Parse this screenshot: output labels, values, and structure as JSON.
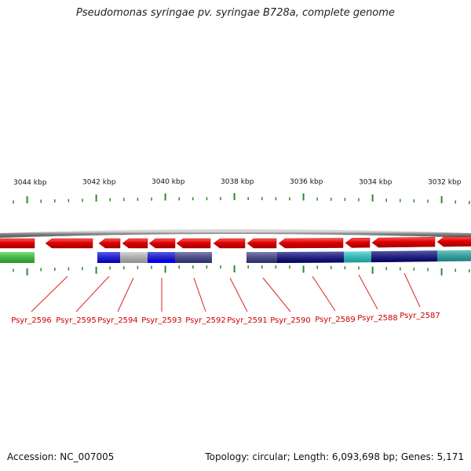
{
  "title": "Pseudomonas syringae pv. syringae B728a, complete genome",
  "footer": {
    "accession": "Accession: NC_007005",
    "summary": "Topology: circular; Length: 6,093,698 bp; Genes: 5,171"
  },
  "colors": {
    "forward_gene": "#e00000",
    "backbone": "#8c8c8c",
    "tick": "#2a8a2a",
    "label": "#cc0000",
    "leader": "#dd2222"
  },
  "scale_labels": [
    "3044 kbp",
    "3042 kbp",
    "3040 kbp",
    "3038 kbp",
    "3036 kbp",
    "3034 kbp",
    "3032 kbp"
  ],
  "gene_labels": [
    "Psyr_2596",
    "Psyr_2595",
    "Psyr_2594",
    "Psyr_2593",
    "Psyr_2592",
    "Psyr_2591",
    "Psyr_2590",
    "Psyr_2589",
    "Psyr_2588",
    "Psyr_2587"
  ],
  "annotation_colors": [
    "#33cc33",
    "#0000ee",
    "#c0c0c0",
    "#0000dd",
    "#3a3a8a",
    "#3a3a8a",
    "#000080",
    "#22cccc",
    "#000080",
    "#22aaaa"
  ]
}
